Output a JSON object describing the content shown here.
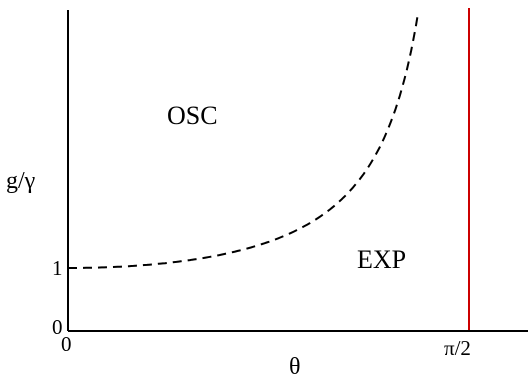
{
  "figure": {
    "xlabel": "θ",
    "ylabel": "g/γ",
    "regions": {
      "upper_left": "OSC",
      "lower_right": "EXP"
    },
    "x_ticks": {
      "origin": "0",
      "end": "π/2"
    },
    "y_ticks": {
      "origin": "0",
      "one": "1"
    },
    "colors": {
      "axes": "#000000",
      "boundary_curve": "#000000",
      "vertical_line": "#cc0000"
    },
    "styles": {
      "boundary_curve": "dashed",
      "vertical_line": "solid"
    }
  }
}
